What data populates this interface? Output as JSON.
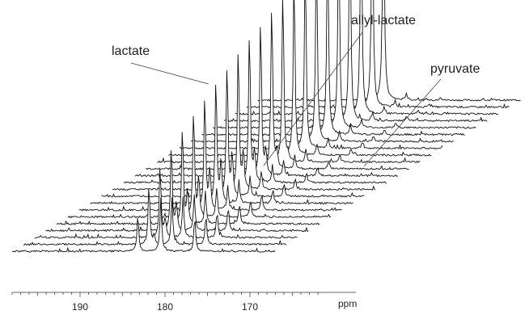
{
  "chart_data": {
    "type": "line",
    "subtype": "stacked-nmr-spectra",
    "x_axis": {
      "label": "ppm",
      "reversed": true,
      "ticks": [
        190,
        180,
        170
      ],
      "range": [
        198,
        162
      ]
    },
    "spectra_count": 23,
    "baseline_noise": true,
    "colors": {
      "line": "#111111",
      "background": "#ffffff"
    },
    "peaks": [
      {
        "id": "lactate",
        "label": "lactate",
        "ppm": 183.2,
        "intensity_trend": "rising",
        "relative_height_first_last": [
          0.15,
          1.0
        ]
      },
      {
        "id": "allyl-lactate",
        "label": "allyl-lactate",
        "ppm": 182.6,
        "intensity_trend": "transient",
        "relative_height_max": 0.18
      },
      {
        "id": "pyruvate",
        "label": "pyruvate",
        "ppm": 180.5,
        "intensity_trend": "decaying",
        "relative_height_first_last": [
          0.22,
          0.02
        ]
      },
      {
        "id": "pyruvate-hydrate",
        "label": "",
        "ppm": 176.5,
        "intensity_trend": "decaying",
        "relative_height_first_last": [
          0.14,
          0.01
        ]
      }
    ],
    "annotations": [
      {
        "text": "lactate",
        "points_to": "lactate"
      },
      {
        "text": "allyl-lactate",
        "points_to": "allyl-lactate"
      },
      {
        "text": "pyruvate",
        "points_to": "pyruvate"
      }
    ],
    "grid": false,
    "legend": "none"
  }
}
